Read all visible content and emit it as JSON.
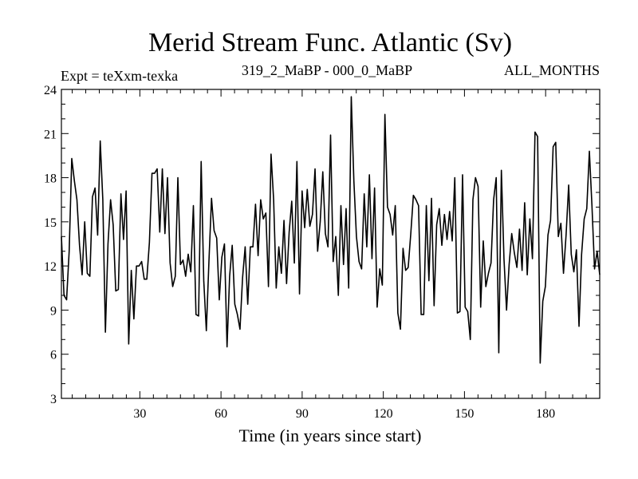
{
  "chart_data": {
    "type": "line",
    "title": "Merid Stream Func. Atlantic (Sv)",
    "subtitle_left": "Expt = teXxm-texka",
    "subtitle_center": "319_2_MaBP - 000_0_MaBP",
    "subtitle_right": "ALL_MONTHS",
    "xlabel": "Time (in years since start)",
    "ylabel": "",
    "xlim": [
      1,
      200
    ],
    "ylim": [
      3,
      24
    ],
    "xticks": [
      30,
      60,
      90,
      120,
      150,
      180
    ],
    "yticks": [
      3,
      6,
      9,
      12,
      15,
      18,
      21,
      24
    ],
    "series": [
      {
        "name": "Merid Stream Func. Atlantic",
        "color": "#000000",
        "values": [
          14.0,
          10.0,
          9.7,
          13.0,
          19.3,
          17.8,
          16.5,
          13.4,
          11.4,
          15.0,
          11.5,
          11.3,
          16.7,
          17.3,
          14.1,
          20.5,
          16.5,
          7.5,
          13.5,
          16.5,
          14.8,
          10.3,
          10.4,
          16.9,
          13.8,
          17.1,
          6.7,
          11.7,
          8.4,
          12.0,
          12.0,
          12.3,
          11.1,
          11.1,
          13.6,
          18.3,
          18.3,
          18.6,
          14.3,
          18.6,
          14.2,
          18.0,
          12.2,
          10.6,
          11.3,
          18.0,
          12.1,
          12.4,
          11.3,
          12.8,
          11.6,
          16.1,
          8.7,
          8.6,
          19.1,
          11.0,
          7.6,
          12.3,
          16.6,
          14.4,
          13.9,
          9.7,
          12.6,
          13.5,
          6.5,
          11.3,
          13.4,
          9.4,
          8.7,
          7.7,
          11.2,
          13.3,
          9.4,
          13.3,
          13.3,
          16.2,
          12.7,
          16.5,
          15.2,
          15.6,
          10.6,
          19.6,
          16.5,
          10.5,
          13.3,
          11.5,
          15.1,
          10.8,
          14.3,
          16.4,
          12.2,
          19.1,
          10.1,
          17.1,
          14.6,
          17.2,
          14.7,
          15.5,
          18.6,
          13.0,
          15.0,
          18.4,
          14.2,
          13.3,
          20.9,
          12.3,
          14.0,
          10.0,
          16.1,
          12.1,
          15.9,
          10.5,
          23.5,
          17.8,
          14.0,
          12.3,
          11.8,
          16.9,
          13.3,
          18.2,
          12.5,
          17.3,
          9.2,
          11.8,
          10.7,
          22.3,
          16.0,
          15.5,
          14.1,
          16.1,
          8.8,
          7.7,
          13.2,
          11.7,
          11.9,
          14.2,
          16.8,
          16.5,
          16.1,
          8.7,
          8.7,
          16.1,
          11.0,
          16.6,
          9.3,
          14.8,
          15.9,
          13.4,
          15.5,
          13.8,
          15.7,
          13.7,
          18.0,
          8.8,
          8.9,
          18.2,
          9.2,
          8.9,
          7.0,
          16.5,
          18.0,
          17.4,
          9.2,
          13.7,
          10.6,
          11.5,
          12.2,
          16.5,
          18.0,
          6.1,
          18.5,
          12.5,
          9.0,
          12.1,
          14.2,
          12.9,
          11.9,
          14.5,
          11.7,
          16.3,
          11.4,
          15.2,
          12.5,
          21.1,
          20.8,
          5.4,
          9.6,
          10.6,
          14.1,
          15.1,
          20.1,
          20.4,
          14.0,
          14.9,
          11.5,
          14.1,
          17.5,
          12.8,
          11.6,
          13.1,
          7.9,
          12.8,
          15.2,
          15.9,
          19.8,
          16.1,
          11.8,
          13.0,
          11.4
        ]
      }
    ]
  }
}
